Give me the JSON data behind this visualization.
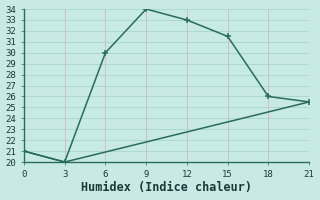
{
  "xlabel": "Humidex (Indice chaleur)",
  "line1_x": [
    0,
    3,
    6,
    9,
    12,
    15,
    18,
    21
  ],
  "line1_y": [
    21,
    20,
    30,
    34,
    33,
    31.5,
    26,
    25.5
  ],
  "line2_x": [
    0,
    3,
    21
  ],
  "line2_y": [
    21,
    20,
    25.5
  ],
  "color": "#2a6b5e",
  "bg_color": "#c8eae6",
  "grid_color_h": "#a8d4d0",
  "grid_color_v": "#d4b8b8",
  "xlim": [
    0,
    21
  ],
  "ylim": [
    20,
    34
  ],
  "xticks": [
    0,
    3,
    6,
    9,
    12,
    15,
    18,
    21
  ],
  "yticks": [
    20,
    21,
    22,
    23,
    24,
    25,
    26,
    27,
    28,
    29,
    30,
    31,
    32,
    33,
    34
  ],
  "tick_fontsize": 6.5,
  "xlabel_fontsize": 8.5
}
